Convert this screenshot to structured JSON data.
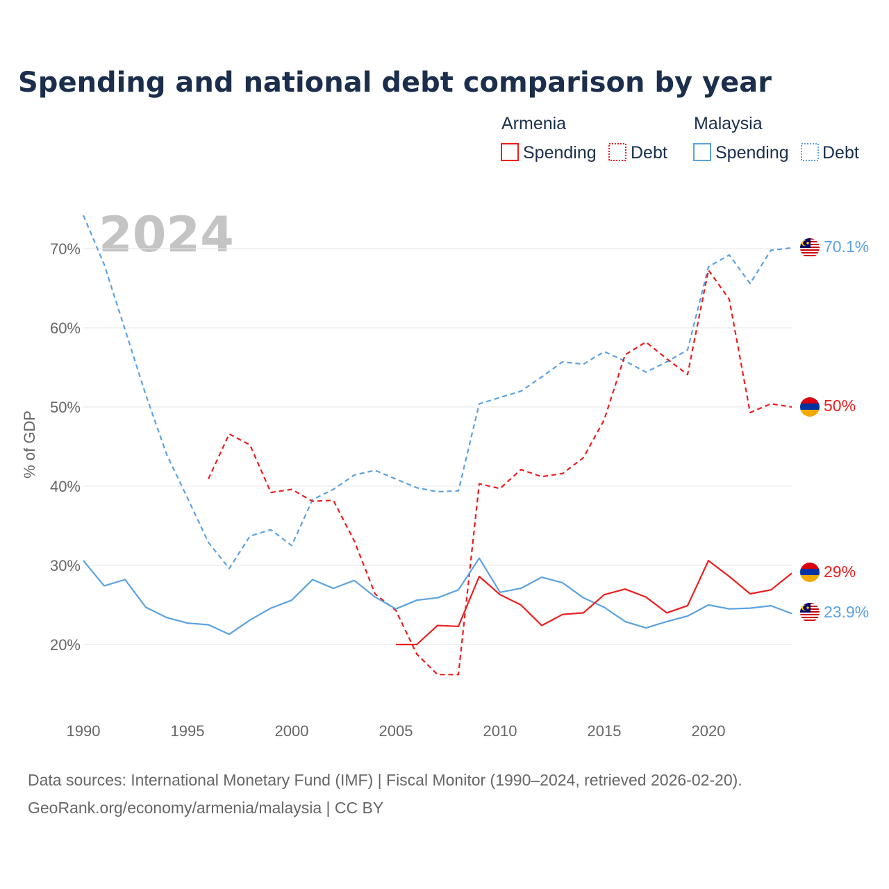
{
  "title": "Spending and national debt comparison by year",
  "legend": {
    "groups": [
      {
        "country": "Armenia",
        "color": "#ee1c1c",
        "items": [
          "Spending",
          "Debt"
        ]
      },
      {
        "country": "Malaysia",
        "color": "#5aa2e2",
        "items": [
          "Spending",
          "Debt"
        ]
      }
    ]
  },
  "year_watermark": "2024",
  "source_line1": "Data sources: International Monetary Fund (IMF) | Fiscal Monitor (1990–2024, retrieved 2026-02-20).",
  "source_line2": "GeoRank.org/economy/armenia/malaysia | CC BY",
  "colors": {
    "armenia": "#ee1c1c",
    "malaysia": "#5aa2e2",
    "title": "#1b2e4b",
    "grid": "#e6e6e6",
    "tick": "#666666"
  },
  "chart_data": {
    "type": "line",
    "ylabel": "% of GDP",
    "xlim": [
      1990,
      2024
    ],
    "ylim": [
      12,
      75
    ],
    "x_ticks": [
      1990,
      1995,
      2000,
      2005,
      2010,
      2015,
      2020
    ],
    "x_tick_labels": [
      "1990",
      "1995",
      "2000",
      "2005",
      "2010",
      "2015",
      "2020"
    ],
    "y_ticks": [
      20,
      30,
      40,
      50,
      60,
      70
    ],
    "y_tick_labels": [
      "20%",
      "30%",
      "40%",
      "50%",
      "60%",
      "70%"
    ],
    "series": [
      {
        "name": "Malaysia Debt",
        "country": "malaysia",
        "style": "dashed",
        "end_label": "70.1%",
        "x": [
          1990,
          1991,
          1992,
          1993,
          1994,
          1995,
          1996,
          1997,
          1998,
          1999,
          2000,
          2001,
          2002,
          2003,
          2004,
          2005,
          2006,
          2007,
          2008,
          2009,
          2010,
          2011,
          2012,
          2013,
          2014,
          2015,
          2016,
          2017,
          2018,
          2019,
          2020,
          2021,
          2022,
          2023,
          2024
        ],
        "values": [
          74.2,
          68.0,
          59.8,
          51.5,
          44.0,
          38.5,
          32.9,
          29.6,
          33.7,
          34.5,
          32.5,
          38.3,
          39.6,
          41.4,
          42.0,
          40.9,
          39.8,
          39.3,
          39.4,
          50.4,
          51.2,
          52.0,
          53.8,
          55.7,
          55.4,
          57.0,
          55.8,
          54.4,
          55.7,
          57.2,
          67.7,
          69.2,
          65.6,
          69.8,
          70.1
        ]
      },
      {
        "name": "Armenia Debt",
        "country": "armenia",
        "style": "dashed",
        "end_label": "50%",
        "x": [
          1996,
          1997,
          1998,
          1999,
          2000,
          2001,
          2002,
          2003,
          2004,
          2005,
          2006,
          2007,
          2008,
          2009,
          2010,
          2011,
          2012,
          2013,
          2014,
          2015,
          2016,
          2017,
          2018,
          2019,
          2020,
          2021,
          2022,
          2023,
          2024
        ],
        "values": [
          40.9,
          46.6,
          45.2,
          39.2,
          39.6,
          38.1,
          38.2,
          33.1,
          26.4,
          24.3,
          18.8,
          16.2,
          16.2,
          40.3,
          39.7,
          42.1,
          41.2,
          41.6,
          43.6,
          48.4,
          56.6,
          58.2,
          56.1,
          54.1,
          67.3,
          63.6,
          49.3,
          50.4,
          50.0
        ]
      },
      {
        "name": "Malaysia Spending",
        "country": "malaysia",
        "style": "solid",
        "end_label": "23.9%",
        "x": [
          1990,
          1991,
          1992,
          1993,
          1994,
          1995,
          1996,
          1997,
          1998,
          1999,
          2000,
          2001,
          2002,
          2003,
          2004,
          2005,
          2006,
          2007,
          2008,
          2009,
          2010,
          2011,
          2012,
          2013,
          2014,
          2015,
          2016,
          2017,
          2018,
          2019,
          2020,
          2021,
          2022,
          2023,
          2024
        ],
        "values": [
          30.6,
          27.4,
          28.2,
          24.7,
          23.4,
          22.7,
          22.5,
          21.3,
          23.1,
          24.6,
          25.6,
          28.2,
          27.1,
          28.1,
          26.0,
          24.5,
          25.6,
          25.9,
          26.9,
          30.9,
          26.6,
          27.1,
          28.5,
          27.8,
          25.9,
          24.7,
          22.9,
          22.1,
          22.9,
          23.6,
          25.0,
          24.5,
          24.6,
          24.9,
          23.9
        ]
      },
      {
        "name": "Armenia Spending",
        "country": "armenia",
        "style": "solid",
        "end_label": "29%",
        "x": [
          2005,
          2006,
          2007,
          2008,
          2009,
          2010,
          2011,
          2012,
          2013,
          2014,
          2015,
          2016,
          2017,
          2018,
          2019,
          2020,
          2021,
          2022,
          2023,
          2024
        ],
        "values": [
          20.0,
          20.0,
          22.4,
          22.3,
          28.6,
          26.3,
          25.0,
          22.4,
          23.8,
          24.0,
          26.3,
          27.0,
          26.0,
          24.0,
          24.9,
          30.6,
          28.6,
          26.4,
          26.9,
          29.0
        ]
      }
    ]
  }
}
